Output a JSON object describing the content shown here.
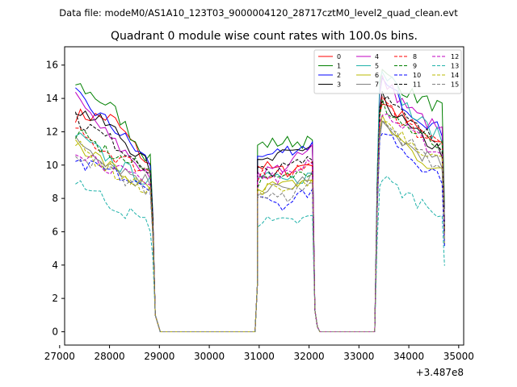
{
  "chart_data": {
    "type": "line",
    "suptitle": "Data file: modeM0/AS1A10_123T03_9000004120_28717cztM0_level2_quad_clean.evt",
    "title": "Quadrant 0 module wise count rates with 100.0s bins.",
    "xlabel": "",
    "ylabel": "",
    "x_offset_label": "+3.487e8",
    "xlim": [
      27100,
      35100
    ],
    "ylim": [
      -0.8,
      17.1
    ],
    "xticks": [
      27000,
      28000,
      29000,
      30000,
      31000,
      32000,
      33000,
      34000,
      35000
    ],
    "xtick_labels": [
      "27000",
      "28000",
      "29000",
      "30000",
      "31000",
      "32000",
      "33000",
      "34000",
      "35000"
    ],
    "yticks": [
      0,
      2,
      4,
      6,
      8,
      10,
      12,
      14,
      16
    ],
    "ytick_labels": [
      "0",
      "2",
      "4",
      "6",
      "8",
      "10",
      "12",
      "14",
      "16"
    ],
    "legend_position": "top-right",
    "legend_columns": 4,
    "segments": [
      {
        "start": 27317,
        "end": 28817
      },
      {
        "start": 29017,
        "end": 30917
      },
      {
        "start": 30967,
        "end": 32067
      },
      {
        "start": 32217,
        "end": 33317
      },
      {
        "start": 33367,
        "end": 34667
      }
    ],
    "gap_values": {
      "seg1_end": [
        7.0,
        1.0
      ],
      "seg2_start": [
        1.5,
        0.1
      ],
      "seg3_end": [
        8.0,
        1.3
      ],
      "seg4_start": [
        0.5,
        0.05
      ]
    },
    "series": [
      {
        "name": "0",
        "color": "#ff0000",
        "dash": "solid",
        "s1": [
          13.0,
          12.8,
          9.9
        ],
        "s3": [
          10.0,
          9.6,
          10.2
        ],
        "s5": [
          13.8,
          12.4,
          11.0
        ]
      },
      {
        "name": "1",
        "color": "#008000",
        "dash": "solid",
        "s1": [
          14.9,
          13.4,
          10.2
        ],
        "s3": [
          11.2,
          11.4,
          11.4
        ],
        "s5": [
          15.5,
          14.2,
          13.4
        ]
      },
      {
        "name": "2",
        "color": "#0000ff",
        "dash": "solid",
        "s1": [
          14.2,
          12.3,
          10.1
        ],
        "s3": [
          10.4,
          10.9,
          11.2
        ],
        "s5": [
          15.0,
          13.2,
          12.0
        ]
      },
      {
        "name": "3",
        "color": "#000000",
        "dash": "solid",
        "s1": [
          13.4,
          12.2,
          9.8
        ],
        "s3": [
          10.0,
          10.6,
          11.2
        ],
        "s5": [
          14.0,
          12.0,
          10.8
        ]
      },
      {
        "name": "4",
        "color": "#c000c0",
        "dash": "solid",
        "s1": [
          14.0,
          11.4,
          9.4
        ],
        "s3": [
          9.5,
          9.9,
          11.0
        ],
        "s5": [
          15.1,
          13.2,
          12.0
        ]
      },
      {
        "name": "5",
        "color": "#20b2aa",
        "dash": "solid",
        "s1": [
          11.8,
          10.2,
          8.9
        ],
        "s3": [
          9.3,
          9.0,
          9.4
        ],
        "s5": [
          16.0,
          13.0,
          11.6
        ]
      },
      {
        "name": "6",
        "color": "#b8b800",
        "dash": "solid",
        "s1": [
          11.4,
          9.8,
          8.4
        ],
        "s3": [
          8.8,
          8.7,
          9.2
        ],
        "s5": [
          12.6,
          10.8,
          9.5
        ]
      },
      {
        "name": "7",
        "color": "#808080",
        "dash": "solid",
        "s1": [
          11.6,
          10.0,
          9.0
        ],
        "s3": [
          8.6,
          8.5,
          9.4
        ],
        "s5": [
          12.2,
          11.0,
          10.0
        ]
      },
      {
        "name": "8",
        "color": "#ff0000",
        "dash": "dashed",
        "s1": [
          12.0,
          10.6,
          9.6
        ],
        "s3": [
          9.4,
          9.6,
          10.0
        ],
        "s5": [
          13.8,
          12.2,
          11.2
        ]
      },
      {
        "name": "9",
        "color": "#008000",
        "dash": "dashed",
        "s1": [
          11.9,
          10.6,
          9.6
        ],
        "s3": [
          9.0,
          9.2,
          9.8
        ],
        "s5": [
          13.6,
          12.0,
          11.0
        ]
      },
      {
        "name": "10",
        "color": "#0000ff",
        "dash": "dashed",
        "s1": [
          10.0,
          9.6,
          8.3
        ],
        "s3": [
          8.4,
          7.6,
          8.6
        ],
        "s5": [
          12.2,
          10.4,
          9.3
        ]
      },
      {
        "name": "11",
        "color": "#000000",
        "dash": "dashed",
        "s1": [
          12.8,
          11.4,
          9.8
        ],
        "s3": [
          9.6,
          9.8,
          10.4
        ],
        "s5": [
          14.2,
          12.4,
          11.2
        ]
      },
      {
        "name": "12",
        "color": "#c000c0",
        "dash": "dashed",
        "s1": [
          11.0,
          9.8,
          8.7
        ],
        "s3": [
          9.2,
          9.3,
          10.4
        ],
        "s5": [
          13.2,
          11.8,
          10.6
        ]
      },
      {
        "name": "13",
        "color": "#20b2aa",
        "dash": "dashed",
        "s1": [
          9.2,
          7.6,
          6.4
        ],
        "s3": [
          6.6,
          6.5,
          6.8
        ],
        "s5": [
          9.2,
          8.0,
          7.2
        ]
      },
      {
        "name": "14",
        "color": "#b8b800",
        "dash": "dashed",
        "s1": [
          11.2,
          9.6,
          8.4
        ],
        "s3": [
          8.6,
          8.4,
          9.0
        ],
        "s5": [
          12.8,
          11.4,
          10.2
        ]
      },
      {
        "name": "15",
        "color": "#808080",
        "dash": "dashed",
        "s1": [
          10.8,
          9.4,
          8.3
        ],
        "s3": [
          8.2,
          8.0,
          9.0
        ],
        "s5": [
          12.6,
          11.2,
          9.8
        ]
      }
    ]
  }
}
